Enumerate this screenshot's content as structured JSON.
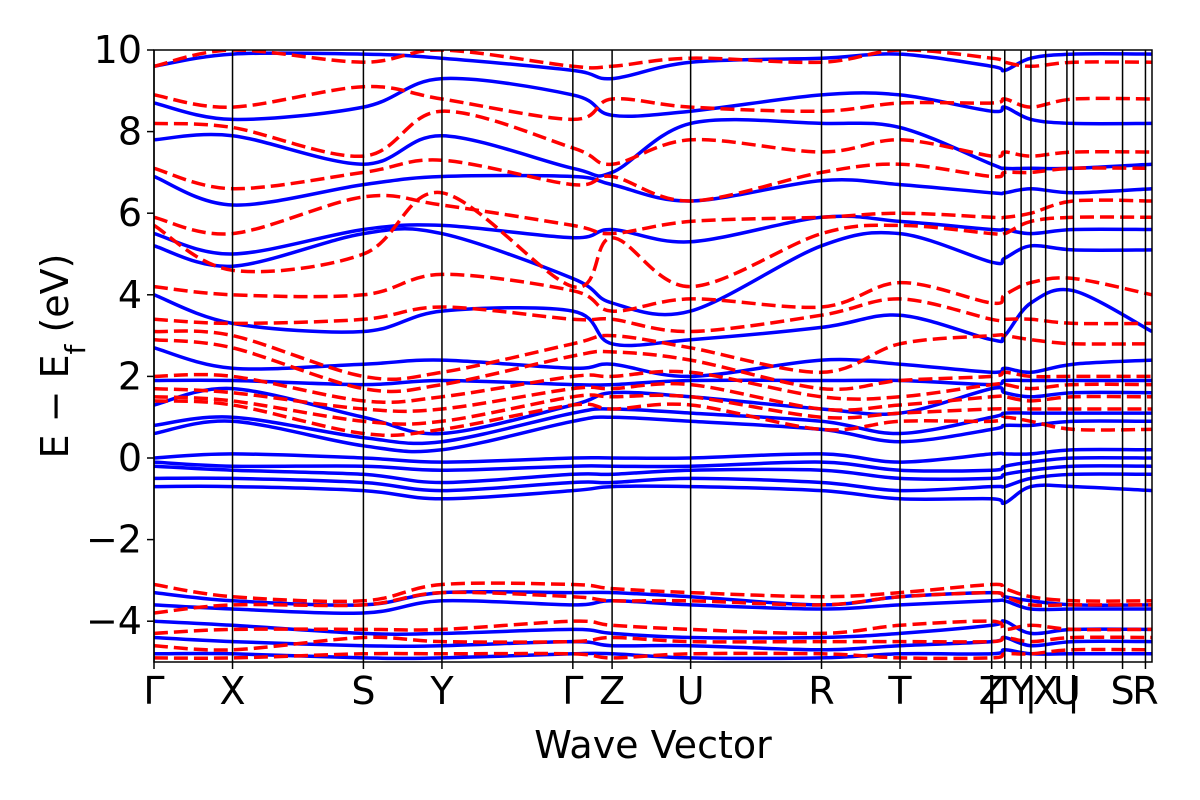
{
  "chart_data": {
    "type": "line",
    "title": "",
    "xlabel": "Wave Vector",
    "ylabel": {
      "main": "E − E",
      "sub": "f",
      "unit": " (eV)"
    },
    "ylim": [
      -5,
      10
    ],
    "yticks": [
      -4,
      -2,
      0,
      2,
      4,
      6,
      8,
      10
    ],
    "ytick_labels": [
      "−4",
      "−2",
      "0",
      "2",
      "4",
      "6",
      "8",
      "10"
    ],
    "xlim": [
      0,
      6.1
    ],
    "kpoints": [
      {
        "label": "Γ",
        "x": 0.0
      },
      {
        "label": "X",
        "x": 0.48
      },
      {
        "label": "S",
        "x": 1.28
      },
      {
        "label": "Y",
        "x": 1.76
      },
      {
        "label": "Γ",
        "x": 2.56
      },
      {
        "label": "Z",
        "x": 2.8
      },
      {
        "label": "U",
        "x": 3.28
      },
      {
        "label": "R",
        "x": 4.08
      },
      {
        "label": "T",
        "x": 4.56
      },
      {
        "label": "Z",
        "x": 5.12
      },
      {
        "label": "|",
        "x": 5.12
      },
      {
        "label": "T",
        "x": 5.2
      },
      {
        "label": "Y",
        "x": 5.3
      },
      {
        "label": "|",
        "x": 5.36
      },
      {
        "label": "X",
        "x": 5.45
      },
      {
        "label": "U",
        "x": 5.58
      },
      {
        "label": "|",
        "x": 5.62
      },
      {
        "label": "S",
        "x": 5.92
      },
      {
        "label": "R",
        "x": 6.06
      }
    ],
    "grid": false,
    "legend": null,
    "series": [
      {
        "style": "solid",
        "color": "#0000ff",
        "description_bands": "conduction and valence bands (spin up)",
        "x": [
          0.0,
          0.48,
          1.28,
          1.76,
          2.56,
          2.8,
          3.28,
          4.08,
          4.56,
          5.12,
          5.2,
          5.36,
          5.62,
          6.1
        ],
        "bands": [
          [
            9.6,
            9.9,
            9.9,
            9.8,
            9.5,
            9.3,
            9.7,
            9.8,
            9.9,
            9.6,
            9.5,
            9.8,
            9.9,
            9.9
          ],
          [
            8.7,
            8.3,
            8.6,
            9.3,
            8.9,
            8.4,
            8.5,
            8.9,
            8.9,
            8.5,
            8.6,
            8.3,
            8.2,
            8.2
          ],
          [
            7.8,
            7.9,
            7.2,
            7.9,
            7.1,
            7.0,
            8.2,
            8.2,
            8.1,
            7.2,
            7.1,
            7.1,
            7.1,
            7.2
          ],
          [
            6.9,
            6.2,
            6.7,
            6.9,
            6.9,
            6.7,
            6.3,
            6.8,
            6.7,
            6.5,
            6.5,
            6.6,
            6.5,
            6.6
          ],
          [
            5.5,
            5.0,
            5.6,
            5.7,
            5.4,
            5.6,
            5.3,
            5.9,
            5.8,
            5.6,
            5.6,
            5.5,
            5.6,
            5.6
          ],
          [
            5.2,
            4.7,
            5.5,
            5.5,
            4.4,
            3.8,
            3.6,
            5.2,
            5.5,
            4.8,
            4.9,
            5.2,
            5.1,
            5.1
          ],
          [
            4.0,
            3.3,
            3.1,
            3.6,
            3.6,
            2.8,
            2.9,
            3.2,
            3.5,
            2.9,
            3.0,
            3.8,
            4.1,
            3.1
          ],
          [
            2.7,
            2.2,
            2.3,
            2.4,
            2.2,
            2.3,
            2.0,
            2.4,
            2.3,
            2.1,
            2.2,
            2.1,
            2.3,
            2.4
          ],
          [
            1.9,
            1.9,
            1.8,
            1.9,
            1.8,
            1.8,
            1.9,
            1.9,
            1.9,
            1.8,
            1.9,
            1.9,
            1.9,
            1.9
          ],
          [
            1.3,
            1.7,
            1.0,
            0.6,
            1.3,
            1.6,
            1.5,
            1.2,
            1.1,
            1.7,
            1.6,
            1.5,
            1.6,
            1.6
          ],
          [
            0.8,
            1.0,
            0.5,
            0.4,
            1.1,
            1.2,
            1.1,
            0.9,
            0.6,
            1.0,
            1.1,
            1.1,
            1.1,
            1.1
          ],
          [
            0.6,
            0.9,
            0.3,
            0.2,
            0.9,
            1.0,
            0.9,
            0.7,
            0.4,
            0.7,
            0.8,
            0.8,
            0.9,
            0.9
          ],
          [
            0.0,
            0.1,
            0.0,
            -0.1,
            0.0,
            0.0,
            0.0,
            0.1,
            -0.1,
            0.1,
            0.1,
            0.1,
            0.2,
            0.2
          ],
          [
            -0.1,
            -0.2,
            -0.2,
            -0.3,
            -0.2,
            -0.2,
            -0.2,
            -0.1,
            -0.3,
            -0.3,
            -0.2,
            -0.1,
            0.0,
            0.0
          ],
          [
            -0.2,
            -0.3,
            -0.4,
            -0.6,
            -0.4,
            -0.4,
            -0.3,
            -0.3,
            -0.5,
            -0.5,
            -0.4,
            -0.3,
            -0.2,
            -0.2
          ],
          [
            -0.5,
            -0.5,
            -0.6,
            -0.8,
            -0.6,
            -0.6,
            -0.5,
            -0.6,
            -0.8,
            -0.7,
            -0.7,
            -0.5,
            -0.4,
            -0.4
          ],
          [
            -0.7,
            -0.7,
            -0.8,
            -1.0,
            -0.8,
            -0.7,
            -0.7,
            -0.8,
            -1.0,
            -1.0,
            -1.1,
            -0.7,
            -0.7,
            -0.8
          ],
          [
            -3.3,
            -3.5,
            -3.6,
            -3.3,
            -3.3,
            -3.3,
            -3.4,
            -3.6,
            -3.4,
            -3.3,
            -3.4,
            -3.5,
            -3.6,
            -3.6
          ],
          [
            -3.6,
            -3.7,
            -3.8,
            -3.5,
            -3.6,
            -3.5,
            -3.6,
            -3.7,
            -3.6,
            -3.5,
            -3.5,
            -3.7,
            -3.7,
            -3.7
          ],
          [
            -4.0,
            -4.1,
            -4.3,
            -4.3,
            -4.2,
            -4.3,
            -4.4,
            -4.4,
            -4.3,
            -4.1,
            -4.0,
            -4.3,
            -4.2,
            -4.2
          ],
          [
            -4.4,
            -4.5,
            -4.6,
            -4.6,
            -4.5,
            -4.6,
            -4.6,
            -4.7,
            -4.6,
            -4.5,
            -4.4,
            -4.6,
            -4.5,
            -4.5
          ],
          [
            -4.8,
            -4.8,
            -4.9,
            -4.9,
            -4.8,
            -4.8,
            -4.9,
            -4.9,
            -4.8,
            -4.8,
            -4.7,
            -4.8,
            -4.8,
            -4.8
          ]
        ]
      },
      {
        "style": "dashed",
        "color": "#ff0000",
        "description_bands": "bands (spin down)",
        "x": [
          0.0,
          0.48,
          1.28,
          1.76,
          2.56,
          2.8,
          3.28,
          4.08,
          4.56,
          5.12,
          5.2,
          5.36,
          5.62,
          6.1
        ],
        "bands": [
          [
            9.6,
            10.0,
            9.7,
            10.0,
            9.6,
            9.6,
            9.8,
            9.7,
            10.0,
            9.8,
            9.7,
            9.6,
            9.7,
            9.7
          ],
          [
            8.9,
            8.6,
            9.1,
            8.8,
            8.3,
            8.8,
            8.6,
            8.5,
            8.7,
            8.7,
            8.8,
            8.6,
            8.8,
            8.8
          ],
          [
            8.2,
            8.1,
            7.4,
            8.5,
            7.6,
            7.2,
            7.8,
            7.5,
            7.8,
            7.4,
            7.5,
            7.4,
            7.5,
            7.5
          ],
          [
            7.1,
            6.6,
            7.0,
            7.3,
            6.7,
            6.9,
            6.3,
            7.0,
            7.2,
            6.9,
            7.0,
            7.0,
            7.1,
            7.1
          ],
          [
            5.9,
            5.5,
            6.4,
            6.2,
            5.7,
            5.5,
            5.8,
            5.9,
            6.0,
            5.9,
            5.9,
            6.0,
            6.3,
            6.3
          ],
          [
            5.7,
            4.6,
            5.0,
            6.5,
            4.2,
            5.4,
            4.2,
            5.5,
            5.7,
            5.5,
            5.5,
            5.8,
            5.9,
            5.9
          ],
          [
            4.2,
            4.0,
            4.0,
            4.5,
            4.1,
            3.6,
            3.9,
            3.7,
            4.3,
            3.8,
            4.0,
            4.3,
            4.4,
            4.0
          ],
          [
            3.4,
            3.3,
            3.4,
            3.7,
            3.4,
            3.4,
            3.1,
            3.5,
            3.9,
            3.4,
            3.4,
            3.4,
            3.3,
            3.3
          ],
          [
            3.1,
            3.0,
            2.0,
            2.1,
            2.8,
            3.0,
            2.7,
            2.1,
            2.8,
            3.0,
            3.0,
            2.9,
            2.8,
            2.8
          ],
          [
            2.9,
            2.7,
            1.7,
            1.8,
            2.5,
            2.6,
            2.4,
            1.7,
            1.9,
            2.0,
            2.1,
            2.0,
            2.0,
            2.0
          ],
          [
            2.0,
            2.0,
            1.4,
            1.5,
            2.0,
            2.0,
            2.1,
            1.5,
            1.5,
            1.8,
            1.8,
            1.7,
            1.8,
            1.8
          ],
          [
            1.7,
            1.6,
            1.2,
            1.2,
            1.7,
            1.7,
            1.8,
            1.2,
            1.3,
            1.5,
            1.5,
            1.4,
            1.5,
            1.5
          ],
          [
            1.5,
            1.4,
            0.9,
            0.9,
            1.5,
            1.5,
            1.5,
            1.0,
            1.1,
            1.2,
            1.2,
            1.2,
            1.2,
            1.2
          ],
          [
            1.4,
            1.3,
            0.6,
            0.7,
            1.3,
            1.2,
            1.3,
            0.7,
            0.9,
            0.9,
            1.0,
            0.9,
            0.7,
            0.7
          ],
          [
            -3.1,
            -3.4,
            -3.5,
            -3.1,
            -3.1,
            -3.2,
            -3.3,
            -3.4,
            -3.3,
            -3.1,
            -3.2,
            -3.4,
            -3.5,
            -3.5
          ],
          [
            -3.8,
            -3.6,
            -3.6,
            -3.3,
            -3.4,
            -3.5,
            -3.5,
            -3.6,
            -3.4,
            -3.3,
            -3.4,
            -3.6,
            -3.6,
            -3.6
          ],
          [
            -4.3,
            -4.2,
            -4.2,
            -4.2,
            -4.0,
            -4.1,
            -4.2,
            -4.3,
            -4.1,
            -4.0,
            -4.2,
            -4.1,
            -4.2,
            -4.2
          ],
          [
            -4.6,
            -4.7,
            -4.4,
            -4.5,
            -4.5,
            -4.4,
            -4.5,
            -4.5,
            -4.5,
            -4.5,
            -4.4,
            -4.5,
            -4.4,
            -4.4
          ],
          [
            -4.9,
            -4.9,
            -4.8,
            -4.8,
            -4.8,
            -4.9,
            -4.8,
            -4.8,
            -4.9,
            -4.9,
            -4.8,
            -4.8,
            -4.7,
            -4.7
          ]
        ]
      }
    ]
  }
}
